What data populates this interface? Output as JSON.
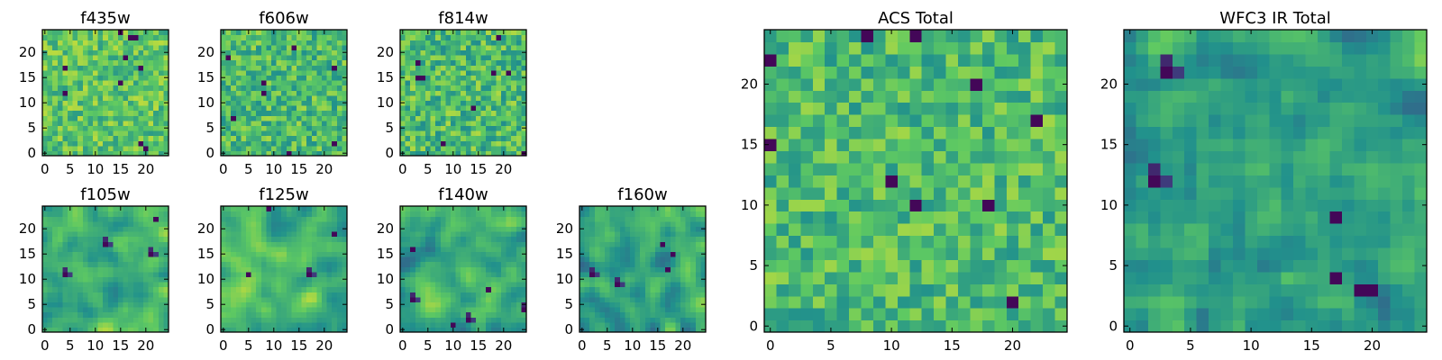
{
  "figure": {
    "colormap": [
      "#440154",
      "#3b528b",
      "#21918c",
      "#5ec962",
      "#fde725"
    ],
    "frame_color": "#000000",
    "background": "#ffffff"
  },
  "chart_data": [
    {
      "type": "heatmap",
      "title": "f435w",
      "grid": false,
      "size": 25,
      "xlim": [
        0,
        24
      ],
      "ylim": [
        0,
        24
      ],
      "x_ticks": [
        0,
        5,
        10,
        15,
        20
      ],
      "y_ticks": [
        0,
        5,
        10,
        15,
        20
      ],
      "seed": 11,
      "smooth": 0,
      "darkSpots": 10,
      "bias": 0.72,
      "spread": 0.16
    },
    {
      "type": "heatmap",
      "title": "f606w",
      "grid": false,
      "size": 25,
      "xlim": [
        0,
        24
      ],
      "ylim": [
        0,
        24
      ],
      "x_ticks": [
        0,
        5,
        10,
        15,
        20
      ],
      "y_ticks": [
        0,
        5,
        10,
        15,
        20
      ],
      "seed": 23,
      "smooth": 0,
      "darkSpots": 8,
      "bias": 0.68,
      "spread": 0.17
    },
    {
      "type": "heatmap",
      "title": "f814w",
      "grid": false,
      "size": 25,
      "xlim": [
        0,
        24
      ],
      "ylim": [
        0,
        24
      ],
      "x_ticks": [
        0,
        5,
        10,
        15,
        20
      ],
      "y_ticks": [
        0,
        5,
        10,
        15,
        20
      ],
      "seed": 37,
      "smooth": 0,
      "darkSpots": 9,
      "bias": 0.68,
      "spread": 0.18
    },
    {
      "type": "heatmap",
      "title": "f105w",
      "grid": false,
      "size": 25,
      "xlim": [
        0,
        24
      ],
      "ylim": [
        0,
        24
      ],
      "x_ticks": [
        0,
        5,
        10,
        15,
        20
      ],
      "y_ticks": [
        0,
        5,
        10,
        15,
        20
      ],
      "seed": 41,
      "smooth": 2,
      "darkSpots": 4,
      "bias": 0.66,
      "spread": 0.2
    },
    {
      "type": "heatmap",
      "title": "f125w",
      "grid": false,
      "size": 25,
      "xlim": [
        0,
        24
      ],
      "ylim": [
        0,
        24
      ],
      "x_ticks": [
        0,
        5,
        10,
        15,
        20
      ],
      "y_ticks": [
        0,
        5,
        10,
        15,
        20
      ],
      "seed": 53,
      "smooth": 2,
      "darkSpots": 4,
      "bias": 0.66,
      "spread": 0.2
    },
    {
      "type": "heatmap",
      "title": "f140w",
      "grid": false,
      "size": 25,
      "xlim": [
        0,
        24
      ],
      "ylim": [
        0,
        24
      ],
      "x_ticks": [
        0,
        5,
        10,
        15,
        20
      ],
      "y_ticks": [
        0,
        5,
        10,
        15,
        20
      ],
      "seed": 67,
      "smooth": 2,
      "darkSpots": 6,
      "bias": 0.6,
      "spread": 0.22
    },
    {
      "type": "heatmap",
      "title": "f160w",
      "grid": false,
      "size": 25,
      "xlim": [
        0,
        24
      ],
      "ylim": [
        0,
        24
      ],
      "x_ticks": [
        0,
        5,
        10,
        15,
        20
      ],
      "y_ticks": [
        0,
        5,
        10,
        15,
        20
      ],
      "seed": 79,
      "smooth": 2,
      "darkSpots": 5,
      "bias": 0.58,
      "spread": 0.22
    },
    {
      "type": "heatmap",
      "title": "ACS Total",
      "grid": false,
      "size": 25,
      "xlim": [
        0,
        24
      ],
      "ylim": [
        0,
        24
      ],
      "x_ticks": [
        0,
        5,
        10,
        15,
        20
      ],
      "y_ticks": [
        0,
        5,
        10,
        15,
        20
      ],
      "seed": 97,
      "smooth": 0,
      "darkSpots": 10,
      "bias": 0.68,
      "spread": 0.16
    },
    {
      "type": "heatmap",
      "title": "WFC3 IR Total",
      "grid": false,
      "size": 25,
      "xlim": [
        0,
        24
      ],
      "ylim": [
        0,
        24
      ],
      "x_ticks": [
        0,
        5,
        10,
        15,
        20
      ],
      "y_ticks": [
        0,
        5,
        10,
        15,
        20
      ],
      "seed": 113,
      "smooth": 1,
      "darkSpots": 6,
      "bias": 0.58,
      "spread": 0.2
    }
  ]
}
